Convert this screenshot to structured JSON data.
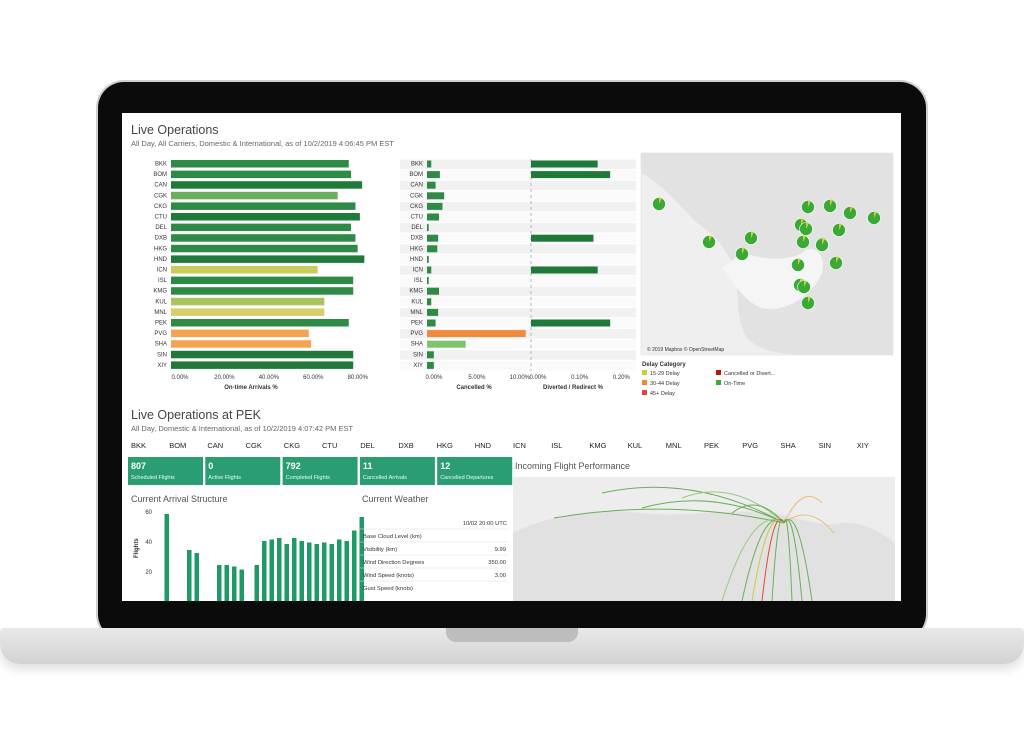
{
  "top": {
    "title": "Live Operations",
    "subtitle": "All Day, All Carriers, Domestic & International, as of 10/2/2019 4:06:45 PM EST",
    "airports": [
      "BKK",
      "BOM",
      "CAN",
      "CGK",
      "CKG",
      "CTU",
      "DEL",
      "DXB",
      "HKG",
      "HND",
      "ICN",
      "ISL",
      "KMG",
      "KUL",
      "MNL",
      "PEK",
      "PVG",
      "SHA",
      "SIN",
      "XIY"
    ]
  },
  "bottom": {
    "title": "Live Operations at PEK",
    "subtitle": "All Day, Domestic & International, as of 10/2/2019 4:07:42 PM EST",
    "airport_tabs": [
      "BKK",
      "BOM",
      "CAN",
      "CGK",
      "CKG",
      "CTU",
      "DEL",
      "DXB",
      "HKG",
      "HND",
      "ICN",
      "ISL",
      "KMG",
      "KUL",
      "MNL",
      "PEK",
      "PVG",
      "SHA",
      "SIN",
      "XIY"
    ],
    "kpis": [
      {
        "value": "807",
        "label": "Scheduled Flights"
      },
      {
        "value": "0",
        "label": "Active Flights"
      },
      {
        "value": "792",
        "label": "Completed Flights"
      },
      {
        "value": "11",
        "label": "Cancelled Arrivals"
      },
      {
        "value": "12",
        "label": "Cancelled Departures"
      }
    ],
    "arrival_title": "Current Arrival Structure",
    "arrival_ylabel": "Flights",
    "weather_title": "Current Weather",
    "weather_timestamp": "10/02 20:00 UTC",
    "weather_rows": [
      {
        "label": "Base Cloud Level (km)",
        "value": ""
      },
      {
        "label": "Visibility (km)",
        "value": "9.99"
      },
      {
        "label": "Wind Direction Degrees",
        "value": "350.00"
      },
      {
        "label": "Wind Speed (knots)",
        "value": "3.00"
      },
      {
        "label": "Gust Speed (knots)",
        "value": ""
      }
    ],
    "incoming_title": "Incoming Flight Performance"
  },
  "map": {
    "attribution": "© 2019 Mapbox © OpenStreetMap"
  },
  "legend": {
    "title": "Delay Category",
    "items": [
      {
        "label": "15-29 Delay",
        "color": "#c9cc3f"
      },
      {
        "label": "Cancelled or Divert...",
        "color": "#b8160f"
      },
      {
        "label": "30-44 Delay",
        "color": "#f08a2c"
      },
      {
        "label": "On-Time",
        "color": "#3aa935"
      },
      {
        "label": "45+ Delay",
        "color": "#e0473c"
      }
    ]
  },
  "chart_data": [
    {
      "type": "bar",
      "title": "",
      "xlabel": "On-time Arrivals %",
      "categories": [
        "BKK",
        "BOM",
        "CAN",
        "CGK",
        "CKG",
        "CTU",
        "DEL",
        "DXB",
        "HKG",
        "HND",
        "ICN",
        "ISL",
        "KMG",
        "KUL",
        "MNL",
        "PEK",
        "PVG",
        "SHA",
        "SIN",
        "XIY"
      ],
      "values": [
        80,
        81,
        86,
        75,
        83,
        85,
        81,
        83,
        84,
        87,
        66,
        82,
        82,
        69,
        69,
        80,
        62,
        63,
        82,
        82
      ],
      "bar_colors": [
        "#2e8b46",
        "#2e8b46",
        "#1f7a3a",
        "#6aaf5a",
        "#2e8b46",
        "#1f7a3a",
        "#2e8b46",
        "#2e8b46",
        "#2e8b46",
        "#1f7a3a",
        "#c9cc5b",
        "#2e8b46",
        "#2e8b46",
        "#a8c45a",
        "#d9cf6a",
        "#2e8b46",
        "#f4a451",
        "#f4a451",
        "#1f7a3a",
        "#1f7a3a"
      ],
      "xticks": [
        "0.00%",
        "20.00%",
        "40.00%",
        "60.00%",
        "80.00%"
      ],
      "xlim": [
        0,
        90
      ]
    },
    {
      "type": "bar",
      "title": "",
      "xlabel": "Cancelled %",
      "categories": [
        "BKK",
        "BOM",
        "CAN",
        "CGK",
        "CKG",
        "CTU",
        "DEL",
        "DXB",
        "HKG",
        "HND",
        "ICN",
        "ISL",
        "KMG",
        "KUL",
        "MNL",
        "PEK",
        "PVG",
        "SHA",
        "SIN",
        "XIY"
      ],
      "values": [
        0.5,
        1.5,
        1.0,
        2.0,
        1.8,
        1.4,
        0.2,
        1.3,
        1.2,
        0.2,
        0.5,
        0.2,
        1.4,
        0.5,
        1.3,
        1.0,
        11.5,
        4.5,
        0.8,
        0.8
      ],
      "xticks": [
        "0.00%",
        "5.00%",
        "10.00%"
      ],
      "xlim": [
        0,
        12
      ]
    },
    {
      "type": "bar",
      "title": "",
      "xlabel": "Diverted / Redirect %",
      "categories": [
        "BKK",
        "BOM",
        "CAN",
        "CGK",
        "CKG",
        "CTU",
        "DEL",
        "DXB",
        "HKG",
        "HND",
        "ICN",
        "ISL",
        "KMG",
        "KUL",
        "MNL",
        "PEK",
        "PVG",
        "SHA",
        "SIN",
        "XIY"
      ],
      "values": [
        0.16,
        0.19,
        0,
        0,
        0,
        0,
        0,
        0.15,
        0,
        0,
        0.16,
        0,
        0,
        0,
        0,
        0.19,
        0,
        0,
        0,
        0
      ],
      "xticks": [
        "0.00%",
        "0.10%",
        "0.20%"
      ],
      "xlim": [
        0,
        0.24
      ]
    },
    {
      "type": "bar",
      "title": "",
      "ylabel": "Flights",
      "yticks": [
        "20",
        "40",
        "60"
      ],
      "ylim": [
        0,
        60
      ],
      "values": [
        0,
        58,
        0,
        0,
        34,
        32,
        0,
        0,
        24,
        24,
        23,
        21,
        0,
        24,
        40,
        41,
        42,
        38,
        42,
        40,
        39,
        38,
        39,
        38,
        41,
        40,
        47,
        56
      ]
    }
  ]
}
